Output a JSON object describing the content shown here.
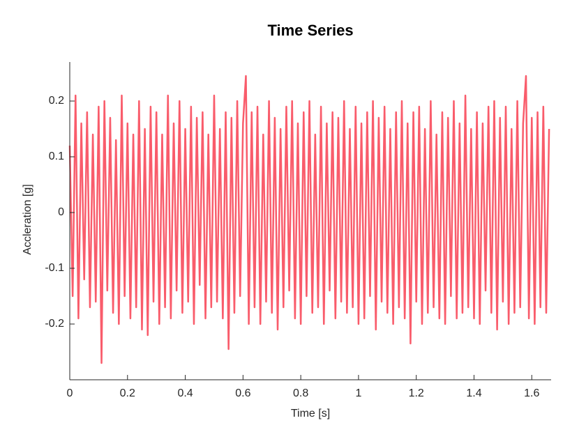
{
  "chart_data": {
    "type": "line",
    "title": "Time Series",
    "xlabel": "Time [s]",
    "ylabel": "Accleration [g]",
    "x": [
      0,
      0.01,
      0.02,
      0.03,
      0.04,
      0.05,
      0.06,
      0.07,
      0.08,
      0.09,
      0.1,
      0.11,
      0.12,
      0.13,
      0.14,
      0.15,
      0.16,
      0.17,
      0.18,
      0.19,
      0.2,
      0.21,
      0.22,
      0.23,
      0.24,
      0.25,
      0.26,
      0.27,
      0.28,
      0.29,
      0.3,
      0.31,
      0.32,
      0.33,
      0.34,
      0.35,
      0.36,
      0.37,
      0.38,
      0.39,
      0.4,
      0.41,
      0.42,
      0.43,
      0.44,
      0.45,
      0.46,
      0.47,
      0.48,
      0.49,
      0.5,
      0.51,
      0.52,
      0.53,
      0.54,
      0.55,
      0.56,
      0.57,
      0.58,
      0.59,
      0.6,
      0.61,
      0.62,
      0.63,
      0.64,
      0.65,
      0.66,
      0.67,
      0.68,
      0.69,
      0.7,
      0.71,
      0.72,
      0.73,
      0.74,
      0.75,
      0.76,
      0.77,
      0.78,
      0.79,
      0.8,
      0.81,
      0.82,
      0.83,
      0.84,
      0.85,
      0.86,
      0.87,
      0.88,
      0.89,
      0.9,
      0.91,
      0.92,
      0.93,
      0.94,
      0.95,
      0.96,
      0.97,
      0.98,
      0.99,
      1,
      1.01,
      1.02,
      1.03,
      1.04,
      1.05,
      1.06,
      1.07,
      1.08,
      1.09,
      1.1,
      1.11,
      1.12,
      1.13,
      1.14,
      1.15,
      1.16,
      1.17,
      1.18,
      1.19,
      1.2,
      1.21,
      1.22,
      1.23,
      1.24,
      1.25,
      1.26,
      1.27,
      1.28,
      1.29,
      1.3,
      1.31,
      1.32,
      1.33,
      1.34,
      1.35,
      1.36,
      1.37,
      1.38,
      1.39,
      1.4,
      1.41,
      1.42,
      1.43,
      1.44,
      1.45,
      1.46,
      1.47,
      1.48,
      1.49,
      1.5,
      1.51,
      1.52,
      1.53,
      1.54,
      1.55,
      1.56,
      1.57,
      1.58,
      1.59,
      1.6,
      1.61,
      1.62,
      1.63,
      1.64,
      1.65,
      1.66
    ],
    "series": [
      {
        "color": "#f95c6b",
        "values": [
          0.12,
          -0.15,
          0.21,
          -0.19,
          0.16,
          -0.12,
          0.18,
          -0.17,
          0.14,
          -0.16,
          0.19,
          -0.27,
          0.2,
          -0.14,
          0.17,
          -0.18,
          0.13,
          -0.2,
          0.21,
          -0.15,
          0.16,
          -0.19,
          0.14,
          -0.17,
          0.2,
          -0.21,
          0.15,
          -0.22,
          0.19,
          -0.16,
          0.18,
          -0.2,
          0.14,
          -0.17,
          0.21,
          -0.19,
          0.16,
          -0.14,
          0.2,
          -0.18,
          0.15,
          -0.16,
          0.19,
          -0.2,
          0.17,
          -0.13,
          0.18,
          -0.19,
          0.14,
          -0.17,
          0.21,
          -0.16,
          0.15,
          -0.19,
          0.18,
          -0.245,
          0.17,
          -0.18,
          0.2,
          -0.15,
          0.16,
          0.245,
          -0.2,
          0.18,
          -0.17,
          0.19,
          -0.2,
          0.14,
          -0.16,
          0.2,
          -0.18,
          0.17,
          -0.21,
          0.15,
          -0.17,
          0.19,
          -0.14,
          0.2,
          -0.19,
          0.16,
          -0.2,
          0.18,
          -0.15,
          0.2,
          -0.18,
          0.14,
          -0.17,
          0.19,
          -0.2,
          0.16,
          -0.14,
          0.18,
          -0.19,
          0.17,
          -0.16,
          0.2,
          -0.18,
          0.15,
          -0.17,
          0.19,
          -0.2,
          0.16,
          -0.19,
          0.18,
          -0.15,
          0.2,
          -0.21,
          0.17,
          -0.16,
          0.19,
          -0.18,
          0.15,
          -0.2,
          0.18,
          -0.17,
          0.2,
          -0.19,
          0.16,
          -0.235,
          0.18,
          -0.16,
          0.19,
          -0.2,
          0.15,
          -0.18,
          0.2,
          -0.17,
          0.14,
          -0.19,
          0.18,
          -0.2,
          0.17,
          -0.15,
          0.2,
          -0.19,
          0.16,
          -0.18,
          0.21,
          -0.17,
          0.15,
          -0.19,
          0.18,
          -0.2,
          0.16,
          -0.14,
          0.19,
          -0.18,
          0.2,
          -0.21,
          0.17,
          -0.16,
          0.19,
          -0.2,
          0.15,
          -0.18,
          0.2,
          -0.17,
          0.16,
          0.245,
          -0.19,
          0.17,
          -0.2,
          0.18,
          -0.17,
          0.19,
          -0.18,
          0.15
        ]
      }
    ],
    "xlim": [
      0,
      1.667
    ],
    "ylim": [
      -0.3,
      0.27
    ],
    "xticks": [
      0,
      0.2,
      0.4,
      0.6,
      0.8,
      1,
      1.2,
      1.4,
      1.6
    ],
    "yticks": [
      -0.2,
      -0.1,
      0,
      0.1,
      0.2
    ]
  }
}
